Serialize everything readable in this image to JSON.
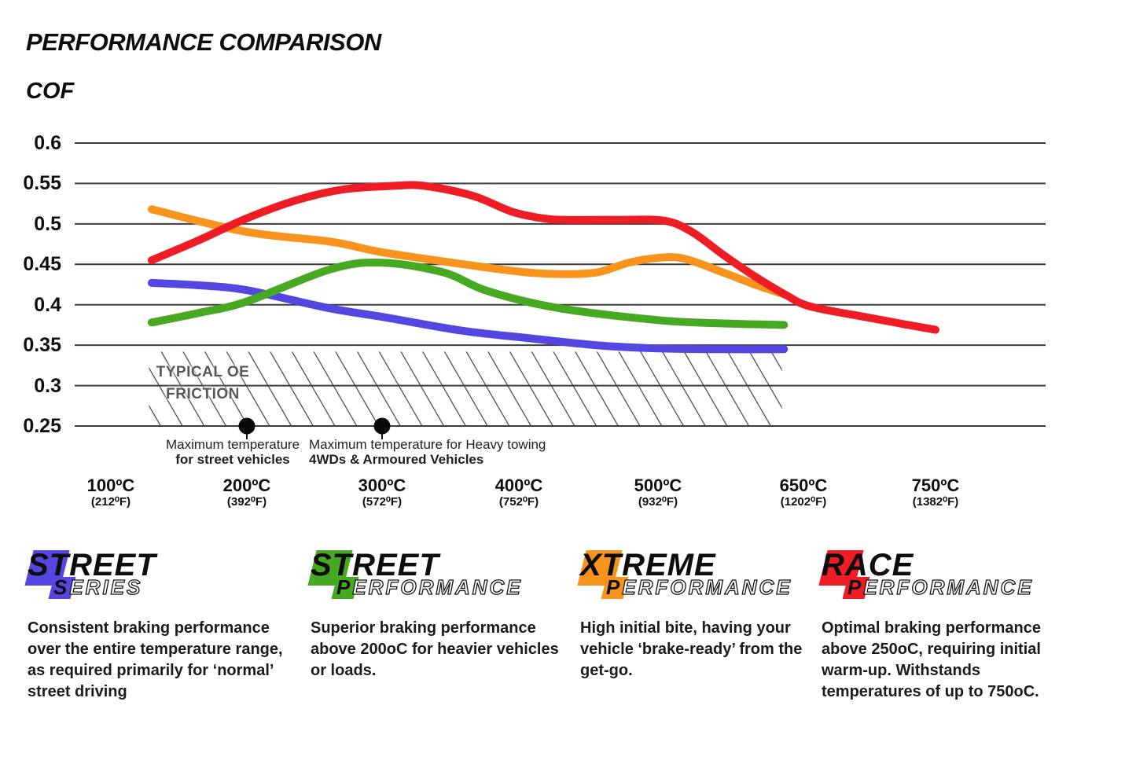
{
  "header": {
    "title": "PERFORMANCE COMPARISON",
    "axis_title": "COF"
  },
  "chart_data": {
    "type": "line",
    "title": "PERFORMANCE COMPARISON",
    "ylabel": "COF",
    "ylim": [
      0.25,
      0.6
    ],
    "grid": "horizontal",
    "y_ticks": [
      "0.6",
      "0.55",
      "0.5",
      "0.45",
      "0.4",
      "0.35",
      "0.3",
      "0.25"
    ],
    "y_tick_values": [
      0.6,
      0.55,
      0.5,
      0.45,
      0.4,
      0.35,
      0.3,
      0.25
    ],
    "x_ticks": [
      {
        "temp": 100,
        "c": "100ºC",
        "f": "(212⁰F)"
      },
      {
        "temp": 200,
        "c": "200ºC",
        "f": "(392⁰F)"
      },
      {
        "temp": 300,
        "c": "300ºC",
        "f": "(572⁰F)"
      },
      {
        "temp": 400,
        "c": "400ºC",
        "f": "(752⁰F)"
      },
      {
        "temp": 500,
        "c": "500ºC",
        "f": "(932⁰F)"
      },
      {
        "temp": 650,
        "c": "650ºC",
        "f": "(1202⁰F)"
      },
      {
        "temp": 750,
        "c": "750ºC",
        "f": "(1382⁰F)"
      }
    ],
    "series": [
      {
        "name": "Street Series",
        "color": "#5546e1",
        "points": [
          [
            130,
            0.427
          ],
          [
            165,
            0.424
          ],
          [
            200,
            0.418
          ],
          [
            260,
            0.396
          ],
          [
            300,
            0.385
          ],
          [
            358,
            0.368
          ],
          [
            400,
            0.36
          ],
          [
            455,
            0.35
          ],
          [
            500,
            0.346
          ],
          [
            565,
            0.345
          ],
          [
            630,
            0.345
          ]
        ]
      },
      {
        "name": "Street Performance",
        "color": "#47a822",
        "points": [
          [
            130,
            0.378
          ],
          [
            165,
            0.39
          ],
          [
            200,
            0.404
          ],
          [
            262,
            0.444
          ],
          [
            300,
            0.452
          ],
          [
            345,
            0.44
          ],
          [
            377,
            0.417
          ],
          [
            428,
            0.396
          ],
          [
            500,
            0.381
          ],
          [
            565,
            0.377
          ],
          [
            630,
            0.375
          ]
        ]
      },
      {
        "name": "Xtreme Performance",
        "color": "#f8941e",
        "points": [
          [
            130,
            0.518
          ],
          [
            200,
            0.49
          ],
          [
            262,
            0.478
          ],
          [
            300,
            0.465
          ],
          [
            360,
            0.45
          ],
          [
            400,
            0.441
          ],
          [
            428,
            0.438
          ],
          [
            456,
            0.44
          ],
          [
            479,
            0.452
          ],
          [
            500,
            0.458
          ],
          [
            527,
            0.457
          ],
          [
            567,
            0.44
          ],
          [
            600,
            0.425
          ],
          [
            632,
            0.412
          ]
        ]
      },
      {
        "name": "Race Performance",
        "color": "#ee1c25",
        "points": [
          [
            130,
            0.455
          ],
          [
            165,
            0.48
          ],
          [
            200,
            0.507
          ],
          [
            238,
            0.53
          ],
          [
            273,
            0.543
          ],
          [
            308,
            0.547
          ],
          [
            331,
            0.547
          ],
          [
            366,
            0.535
          ],
          [
            395,
            0.515
          ],
          [
            417,
            0.507
          ],
          [
            434,
            0.505
          ],
          [
            469,
            0.505
          ],
          [
            506,
            0.504
          ],
          [
            535,
            0.49
          ],
          [
            567,
            0.462
          ],
          [
            600,
            0.435
          ],
          [
            632,
            0.412
          ],
          [
            655,
            0.398
          ],
          [
            696,
            0.385
          ],
          [
            726,
            0.376
          ],
          [
            750,
            0.369
          ]
        ]
      }
    ],
    "oe_band": {
      "label_line1": "TYPICAL OE",
      "label_line2": "FRICTION",
      "from_temp": 128,
      "to_temp": 628,
      "from_cof": 0.25,
      "to_cof": 0.342
    },
    "markers": [
      {
        "temp": 200,
        "cof": 0.25,
        "label_line1": "Maximum temperature",
        "label_line2": "for street vehicles"
      },
      {
        "temp": 300,
        "cof": 0.25,
        "label_line1": "Maximum temperature for Heavy towing",
        "label_line2": "4WDs & Armoured Vehicles"
      }
    ]
  },
  "legend": {
    "items": [
      {
        "line1": "STREET",
        "line2_first": "S",
        "line2_rest": "ERIES",
        "color": "#5546e1",
        "description": "Consistent braking performance over the entire temperature range, as required primarily for ‘normal’ street driving"
      },
      {
        "line1": "STREET",
        "line2_first": "P",
        "line2_rest": "ERFORMANCE",
        "color": "#47a822",
        "description": "Superior braking performance above 200oC for heavier vehicles or loads."
      },
      {
        "line1": "XTREME",
        "line2_first": "P",
        "line2_rest": "ERFORMANCE",
        "color": "#f8941e",
        "description": "High initial bite, having your vehicle ‘brake-ready’ from the get-go."
      },
      {
        "line1": "RACE",
        "line2_first": "P",
        "line2_rest": "ERFORMANCE",
        "color": "#ee1c25",
        "description": "Optimal braking performance above 250oC, requiring initial warm-up. Withstands temperatures of up to 750oC."
      }
    ]
  }
}
